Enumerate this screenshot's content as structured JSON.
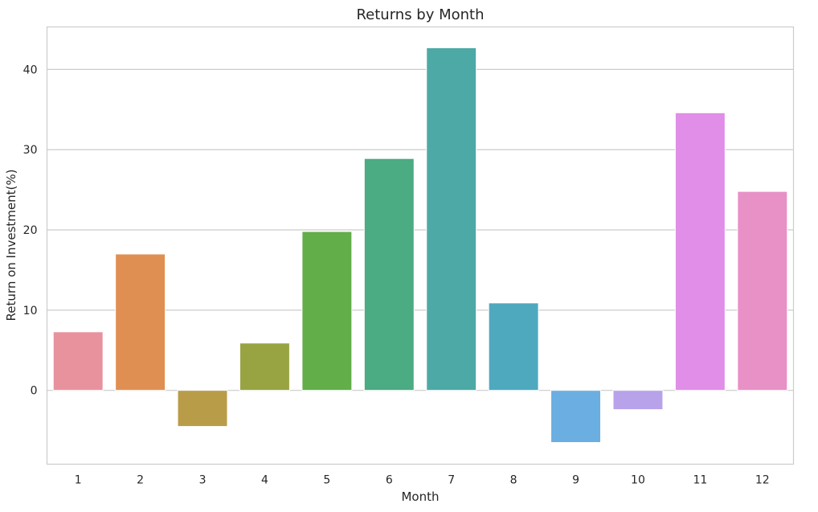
{
  "chart_data": {
    "type": "bar",
    "title": "Returns by Month",
    "xlabel": "Month",
    "ylabel": "Return on Investment(%)",
    "categories": [
      "1",
      "2",
      "3",
      "4",
      "5",
      "6",
      "7",
      "8",
      "9",
      "10",
      "11",
      "12"
    ],
    "values": [
      7.3,
      17.0,
      -4.5,
      5.9,
      19.8,
      28.9,
      42.7,
      10.9,
      -6.5,
      -2.4,
      34.6,
      24.8
    ],
    "colors": [
      "#e8929e",
      "#e08f53",
      "#b99c48",
      "#98a442",
      "#62ae48",
      "#4bab82",
      "#4ca9a6",
      "#4ea9be",
      "#6aaee2",
      "#b8a2ea",
      "#e08ee8",
      "#e891c7"
    ],
    "ylim": [
      -9.2,
      45.3
    ],
    "yticks": [
      0,
      10,
      20,
      30,
      40
    ],
    "grid": true,
    "legend": "none"
  }
}
